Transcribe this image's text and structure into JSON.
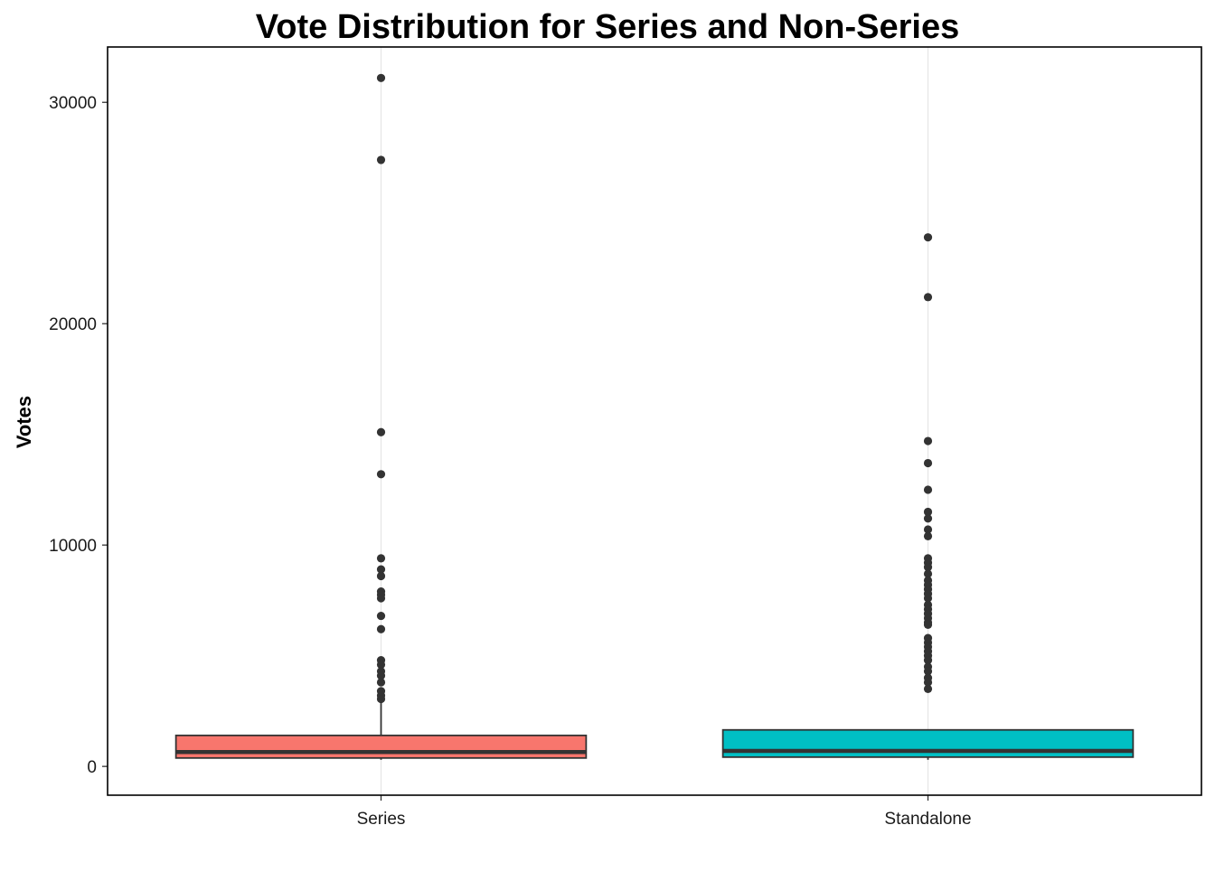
{
  "chart_data": {
    "type": "boxplot",
    "title": "Vote Distribution for Series and Non-Series",
    "xlabel": "",
    "ylabel": "Votes",
    "ylim": [
      -1300,
      32500
    ],
    "y_ticks": [
      0,
      10000,
      20000,
      30000
    ],
    "y_tick_labels": [
      "0",
      "10000",
      "20000",
      "30000"
    ],
    "grid": "vertical major gridlines only",
    "legend": "none",
    "categories": [
      "Series",
      "Standalone"
    ],
    "boxes": [
      {
        "category": "Series",
        "color": "#F8766D",
        "whisker_low": 300,
        "q1": 380,
        "median": 650,
        "q3": 1400,
        "whisker_high": 2900,
        "outliers": [
          31100,
          27400,
          15100,
          13200,
          9400,
          8900,
          8600,
          7900,
          7750,
          7600,
          6800,
          6200,
          4800,
          4600,
          4300,
          4100,
          3800,
          3400,
          3200,
          3050
        ]
      },
      {
        "category": "Standalone",
        "color": "#00BFC4",
        "whisker_low": 300,
        "q1": 420,
        "median": 700,
        "q3": 1650,
        "whisker_high": 1650,
        "outliers": [
          23900,
          21200,
          14700,
          13700,
          12500,
          11500,
          11200,
          10700,
          10400,
          9400,
          9200,
          9000,
          8700,
          8400,
          8200,
          8000,
          7800,
          7600,
          7300,
          7100,
          6900,
          6700,
          6500,
          6400,
          5800,
          5600,
          5400,
          5200,
          5000,
          4800,
          4500,
          4300,
          4000,
          3800,
          3500
        ]
      }
    ]
  }
}
